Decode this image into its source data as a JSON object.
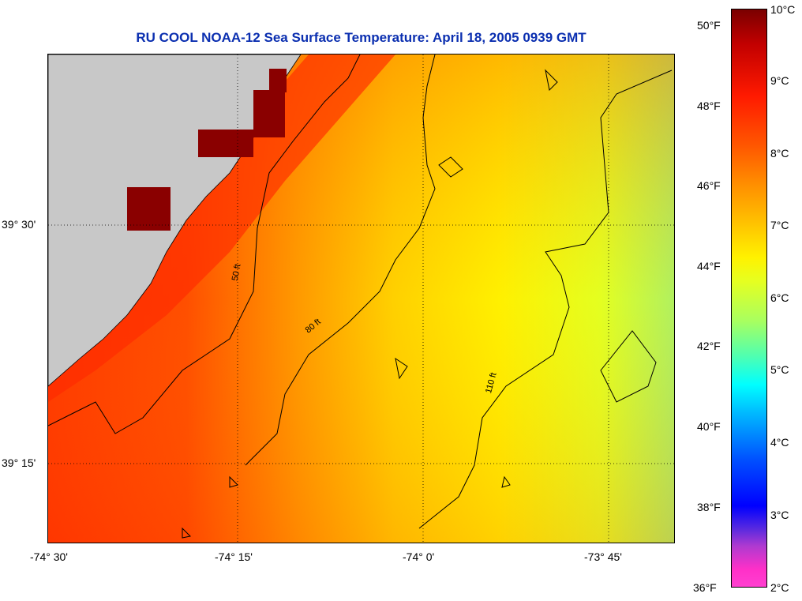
{
  "title": "RU COOL  NOAA-12  Sea Surface Temperature:  April 18, 2005 0939 GMT",
  "map": {
    "lon_labels": [
      "-74° 30'",
      "-74° 15'",
      "-74° 0'",
      "-73° 45'"
    ],
    "lat_labels": [
      "39° 30'",
      "39° 15'"
    ],
    "contour_labels": [
      "50 ft",
      "80 ft",
      "110 ft"
    ],
    "land_color": "#c8c8c8"
  },
  "colorbar": {
    "fahrenheit_labels": [
      "50°F",
      "48°F",
      "46°F",
      "44°F",
      "42°F",
      "40°F",
      "38°F",
      "36°F"
    ],
    "celsius_labels": [
      "10°C",
      "9°C",
      "8°C",
      "7°C",
      "6°C",
      "5°C",
      "4°C",
      "3°C",
      "2°C"
    ]
  }
}
